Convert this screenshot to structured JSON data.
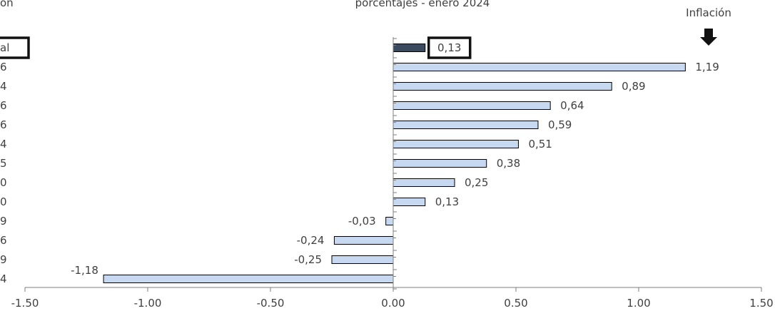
{
  "header": {
    "title_fragment": "porcentajes - enero 2024",
    "left_fragment": "ón",
    "inflation_label": "Inflación"
  },
  "chart_data": {
    "type": "bar",
    "orientation": "horizontal",
    "category_labels": [
      "al",
      "6",
      "4",
      "6",
      "6",
      "4",
      "5",
      "0",
      "0",
      "9",
      "6",
      "9",
      "4"
    ],
    "values": [
      0.13,
      1.19,
      0.89,
      0.64,
      0.59,
      0.51,
      0.38,
      0.25,
      0.13,
      -0.03,
      -0.24,
      -0.25,
      -1.18
    ],
    "value_labels": [
      "0,13",
      "1,19",
      "0,89",
      "0,64",
      "0,59",
      "0,51",
      "0,38",
      "0,25",
      "0,13",
      "-0,03",
      "-0,24",
      "-0,25",
      "-1,18"
    ],
    "highlight_index": 0,
    "xlim": [
      -1.5,
      1.5
    ],
    "xticks": [
      -1.5,
      -1.0,
      -0.5,
      0.0,
      0.5,
      1.0,
      1.5
    ],
    "xtick_labels": [
      "-1.50",
      "-1.00",
      "-0.50",
      "0.00",
      "0.50",
      "1.00",
      "1.50"
    ],
    "grid": false,
    "colors": {
      "bar": "#c6d9f0",
      "bar_highlight": "#3b4a5e",
      "bar_stroke": "#000000",
      "axis": "#7f7f7f",
      "text": "#404040"
    }
  }
}
